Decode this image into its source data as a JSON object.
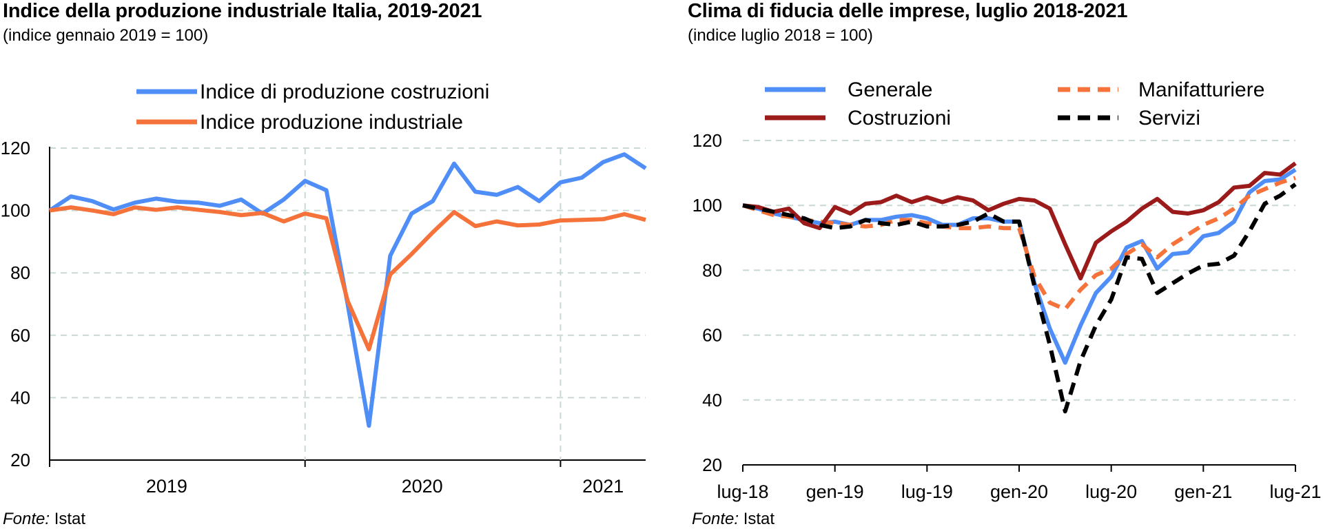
{
  "charts": [
    {
      "title": "Indice della produzione industriale Italia, 2019-2021",
      "subtitle": "(indice gennaio 2019 = 100)",
      "source_label": "Fonte:",
      "source_value": "Istat"
    },
    {
      "title": "Clima di fiducia delle imprese, luglio 2018-2021",
      "subtitle": "(indice luglio 2018 = 100)",
      "source_label": "Fonte:",
      "source_value": "Istat"
    }
  ],
  "chart_data": [
    {
      "type": "line",
      "title": "Indice della produzione industriale Italia, 2019-2021",
      "subtitle": "(indice gennaio 2019 = 100)",
      "x": [
        "2019-01",
        "2019-02",
        "2019-03",
        "2019-04",
        "2019-05",
        "2019-06",
        "2019-07",
        "2019-08",
        "2019-09",
        "2019-10",
        "2019-11",
        "2019-12",
        "2020-01",
        "2020-02",
        "2020-03",
        "2020-04",
        "2020-05",
        "2020-06",
        "2020-07",
        "2020-08",
        "2020-09",
        "2020-10",
        "2020-11",
        "2020-12",
        "2021-01",
        "2021-02",
        "2021-03",
        "2021-04",
        "2021-05"
      ],
      "x_ticks": [
        "2019",
        "2020",
        "2021"
      ],
      "ylim": [
        20,
        120
      ],
      "y_ticks": [
        20,
        40,
        60,
        80,
        100,
        120
      ],
      "grid": true,
      "legend": "top-center",
      "series": [
        {
          "name": "Indice di produzione costruzioni",
          "color": "#4F8EF7",
          "style": "solid",
          "values": [
            100,
            104.5,
            103,
            100.3,
            102.5,
            103.8,
            102.8,
            102.5,
            101.5,
            103.5,
            99,
            103.5,
            109.5,
            106.5,
            70,
            31,
            85.5,
            99,
            103,
            115,
            106,
            105,
            107.5,
            103,
            109,
            110.5,
            115.5,
            118,
            113.5
          ]
        },
        {
          "name": "Indice produzione industriale",
          "color": "#F5733A",
          "style": "solid",
          "values": [
            100,
            101,
            100,
            98.8,
            101,
            100.2,
            101,
            100.2,
            99.5,
            98.5,
            99.2,
            96.5,
            99,
            97.5,
            71,
            55.5,
            79.5,
            86,
            93,
            99.5,
            95,
            96.5,
            95.2,
            95.5,
            96.8,
            97,
            97.2,
            98.8,
            97
          ]
        }
      ]
    },
    {
      "type": "line",
      "title": "Clima di fiducia delle imprese, luglio 2018-2021",
      "subtitle": "(indice luglio 2018 = 100)",
      "x": [
        "2018-07",
        "2018-08",
        "2018-09",
        "2018-10",
        "2018-11",
        "2018-12",
        "2019-01",
        "2019-02",
        "2019-03",
        "2019-04",
        "2019-05",
        "2019-06",
        "2019-07",
        "2019-08",
        "2019-09",
        "2019-10",
        "2019-11",
        "2019-12",
        "2020-01",
        "2020-02",
        "2020-03",
        "2020-04",
        "2020-05",
        "2020-06",
        "2020-07",
        "2020-08",
        "2020-09",
        "2020-10",
        "2020-11",
        "2020-12",
        "2021-01",
        "2021-02",
        "2021-03",
        "2021-04",
        "2021-05",
        "2021-06",
        "2021-07"
      ],
      "x_ticks": [
        "lug-18",
        "gen-19",
        "lug-19",
        "gen-20",
        "lug-20",
        "gen-21",
        "lug-21"
      ],
      "ylim": [
        20,
        120
      ],
      "y_ticks": [
        20,
        40,
        60,
        80,
        100,
        120
      ],
      "grid": true,
      "legend": "top",
      "series": [
        {
          "name": "Generale",
          "color": "#4F8EF7",
          "style": "solid",
          "values": [
            100,
            99,
            97.5,
            96.5,
            95.5,
            94.5,
            95,
            94,
            95.5,
            95.5,
            96.5,
            97,
            96,
            94,
            94,
            96,
            96,
            95,
            95,
            76,
            62,
            51.5,
            63,
            73,
            78,
            87,
            89,
            80.5,
            85,
            85.5,
            90.5,
            91.5,
            95,
            104,
            107.5,
            108,
            111
          ]
        },
        {
          "name": "Manifatturiere",
          "color": "#F5733A",
          "style": "dashed",
          "values": [
            100,
            98.5,
            97,
            96.5,
            95.5,
            95,
            94.5,
            94,
            93.5,
            94,
            95.5,
            95.5,
            94.5,
            93.5,
            93,
            93,
            93.5,
            93,
            93,
            78,
            70,
            68,
            74,
            78.5,
            80.5,
            85,
            88,
            84,
            88,
            91,
            94,
            96,
            99,
            103,
            105,
            107,
            108.5
          ]
        },
        {
          "name": "Costruzioni",
          "color": "#9B1B1B",
          "style": "solid",
          "values": [
            100,
            99.5,
            98,
            99,
            94.5,
            93,
            99.5,
            97.5,
            100.5,
            101,
            103,
            101,
            102.5,
            101,
            102.5,
            101.5,
            98.5,
            100.5,
            102,
            101.5,
            99,
            88,
            77.5,
            88.5,
            92,
            95,
            99,
            102,
            98,
            97.5,
            98.5,
            101,
            105.5,
            106,
            110,
            109.5,
            113
          ]
        },
        {
          "name": "Servizi",
          "color": "#000000",
          "style": "dashed",
          "values": [
            100,
            99,
            98,
            97,
            96,
            94,
            93,
            93.5,
            95.5,
            94.5,
            94,
            95,
            93.5,
            93.5,
            94,
            95,
            97.5,
            95,
            95,
            75,
            57,
            36.5,
            52,
            63,
            71,
            84,
            83.5,
            73,
            76,
            79,
            81.5,
            82,
            84.5,
            92,
            100.5,
            103,
            106.5
          ]
        }
      ]
    }
  ]
}
